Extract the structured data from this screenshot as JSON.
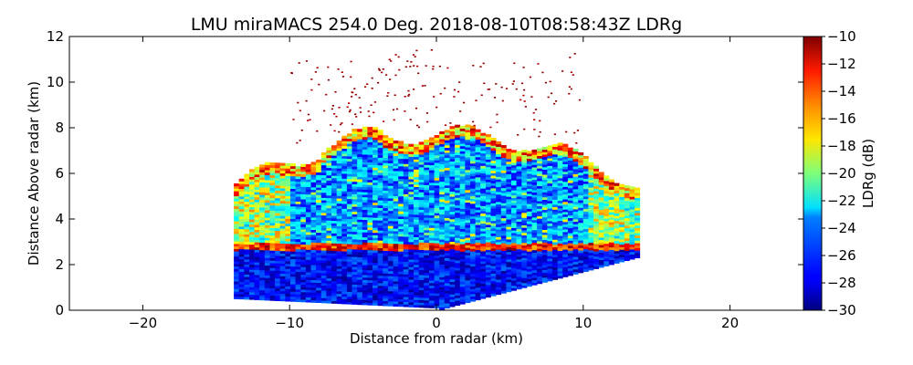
{
  "chart_data": {
    "type": "heatmap",
    "title": "LMU miraMACS 254.0 Deg. 2018-08-10T08:58:43Z  LDRg",
    "xlabel": "Distance from radar (km)",
    "ylabel": "Distance Above radar  (km)",
    "xlim": [
      -25,
      25
    ],
    "ylim": [
      0,
      12
    ],
    "x_ticks": [
      -20,
      -10,
      0,
      10,
      20
    ],
    "y_ticks": [
      0,
      2,
      4,
      6,
      8,
      10,
      12
    ],
    "colorbar": {
      "label": "LDRg (dB)",
      "range": [
        -30,
        -10
      ],
      "ticks": [
        -10,
        -12,
        -14,
        -16,
        -18,
        -20,
        -22,
        -24,
        -26,
        -28,
        -30
      ],
      "colormap": "jet"
    },
    "features": {
      "melting_layer_height_km": 2.7,
      "cloud_top_km": 8.0,
      "scan_extent_km": [
        -13.8,
        13.7
      ],
      "noise_above_km": [
        8.0,
        11.5
      ]
    }
  }
}
